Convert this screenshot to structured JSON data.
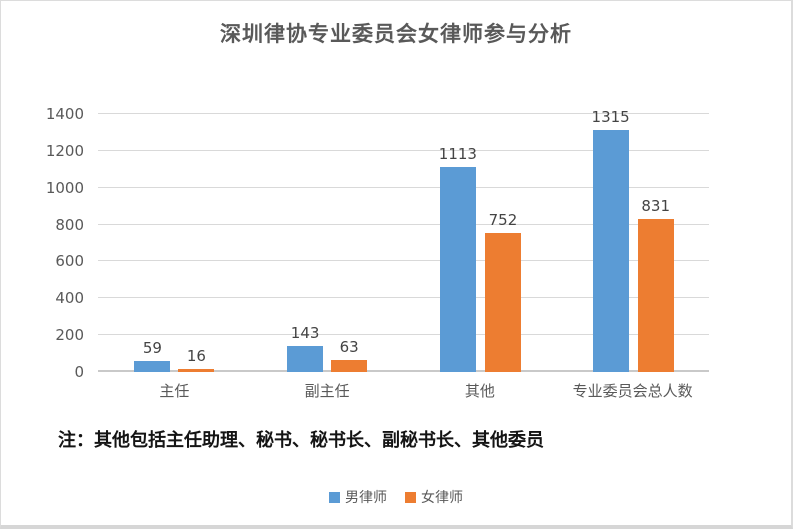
{
  "title": "深圳律协专业委员会女律师参与分析",
  "note": "注：其他包括主任助理、秘书、秘书长、副秘书长、其他委员",
  "colors": {
    "male_series": "#5B9BD5",
    "female_series": "#ED7D31",
    "gridline": "#D9D9D9",
    "axis_text": "#595959",
    "title_text": "#595959",
    "value_label_text": "#444444",
    "note_text": "#141414",
    "frame_border": "#DCDCDC",
    "background": "#FFFFFF"
  },
  "chart_data": {
    "type": "bar",
    "title": "深圳律协专业委员会女律师参与分析",
    "categories": [
      "主任",
      "副主任",
      "其他",
      "专业委员会总人数"
    ],
    "series": [
      {
        "name": "男律师",
        "color": "#5B9BD5",
        "values": [
          59,
          143,
          1113,
          1315
        ]
      },
      {
        "name": "女律师",
        "color": "#ED7D31",
        "values": [
          16,
          63,
          752,
          831
        ]
      }
    ],
    "xlabel": "",
    "ylabel": "",
    "ylim": [
      0,
      1400
    ],
    "yticks": [
      0,
      200,
      400,
      600,
      800,
      1000,
      1200,
      1400
    ],
    "grid": true,
    "data_labels": true,
    "legend_position": "bottom"
  },
  "legend": {
    "items": [
      {
        "label": "男律师",
        "color": "#5B9BD5"
      },
      {
        "label": "女律师",
        "color": "#ED7D31"
      }
    ]
  }
}
